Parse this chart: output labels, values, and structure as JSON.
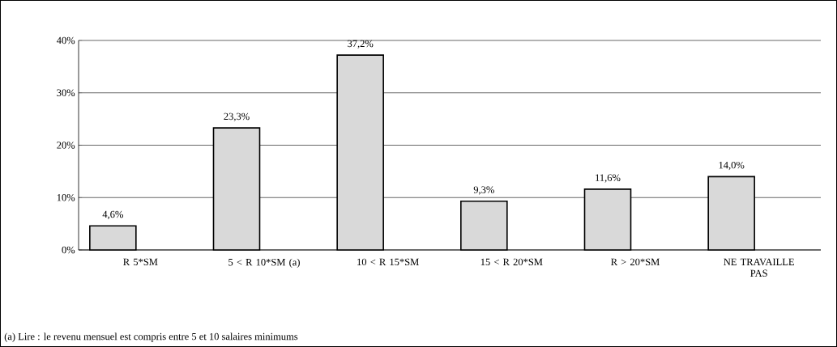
{
  "chart_data": {
    "type": "bar",
    "categories": [
      "R 5*SM",
      "5 < R 10*SM (a)",
      "10 < R 15*SM",
      "15 < R 20*SM",
      "R > 20*SM",
      "NE TRAVAILLE PAS"
    ],
    "values": [
      4.6,
      23.3,
      37.2,
      9.3,
      11.6,
      14.0
    ],
    "value_labels": [
      "4,6%",
      "23,3%",
      "37,2%",
      "9,3%",
      "11,6%",
      "14,0%"
    ],
    "color": "#d9d9d9",
    "ylim": [
      0,
      40
    ],
    "yticks": [
      {
        "value": 0,
        "label": "0%"
      },
      {
        "value": 10,
        "label": "10%"
      },
      {
        "value": 20,
        "label": "20%"
      },
      {
        "value": 30,
        "label": "30%"
      },
      {
        "value": 40,
        "label": "40%"
      }
    ],
    "grid": "y",
    "annotations": [
      "(a) Lire : le revenu mensuel est compris entre 5 et 10 salaires minimums"
    ]
  }
}
